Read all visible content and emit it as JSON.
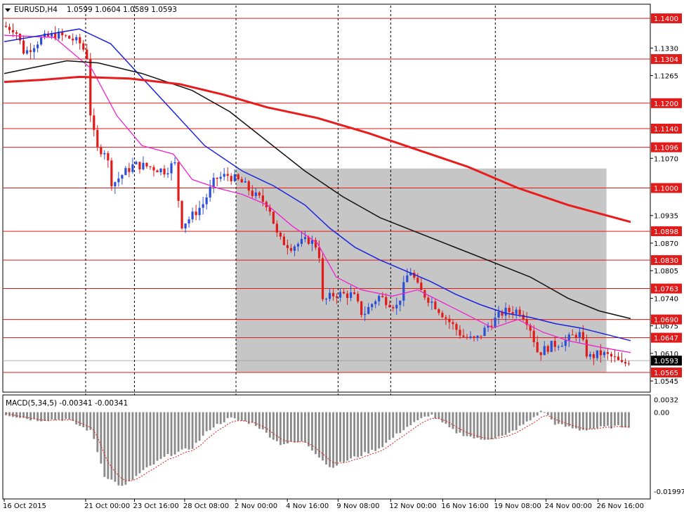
{
  "header": {
    "symbol_text": "EURUSD,H4",
    "ohlc_text": "1.0599 1.0604 1.0589 1.0593"
  },
  "macd": {
    "label": "MACD(5,34,5) -0.00341 -0.00341",
    "axis_ticks": [
      {
        "value": 0.0032,
        "label": "0.0032"
      },
      {
        "value": 0.0,
        "label": "0.00"
      },
      {
        "value": -0.01997,
        "label": "-0.01997"
      }
    ]
  },
  "colors": {
    "bull": "#2a4fd6",
    "bear": "#e11a1a",
    "level_line": "#e11a1a",
    "label_bg": "#e11a1a",
    "ma_fast": "#ee22cc",
    "ma_mid": "#1a25dd",
    "ma_slow": "#111111",
    "ma_long": "#e81c1c",
    "zone_fill": "#c6c6c6",
    "macd_hist": "#8a8a8a",
    "macd_signal": "#e11a1a"
  },
  "chart_data": {
    "type": "candlestick",
    "ylim": [
      1.0522,
      1.143
    ],
    "price_ticks": [
      "1.1330",
      "1.1265",
      "1.1070",
      "1.0935",
      "1.0870",
      "1.0805",
      "1.0740",
      "1.0675",
      "1.0610",
      "1.0545"
    ],
    "levels": [
      {
        "value": 1.14,
        "label": "1.1400"
      },
      {
        "value": 1.1304,
        "label": "1.1304"
      },
      {
        "value": 1.12,
        "label": "1.1200"
      },
      {
        "value": 1.114,
        "label": "1.1140"
      },
      {
        "value": 1.1096,
        "label": "1.1096"
      },
      {
        "value": 1.1,
        "label": "1.1000"
      },
      {
        "value": 1.0898,
        "label": "1.0898"
      },
      {
        "value": 1.083,
        "label": "1.0830"
      },
      {
        "value": 1.0763,
        "label": "1.0763"
      },
      {
        "value": 1.069,
        "label": "1.0690"
      },
      {
        "value": 1.0647,
        "label": "1.0647"
      },
      {
        "value": 1.0565,
        "label": "1.0565"
      }
    ],
    "current_price": {
      "value": 1.0593,
      "label": "1.0593"
    },
    "shaded_zone": {
      "from": "2 Nov 00:00",
      "to": "26 Nov 16:00",
      "price_low": 1.0566,
      "price_high": 1.1046
    },
    "time_labels": [
      "16 Oct 2015",
      "21 Oct 00:00",
      "23 Oct 16:00",
      "28 Oct 08:00",
      "2 Nov 00:00",
      "4 Nov 16:00",
      "9 Nov 08:00",
      "12 Nov 00:00",
      "16 Nov 16:00",
      "19 Nov 08:00",
      "24 Nov 00:00",
      "26 Nov 16:00"
    ],
    "day_separators": [
      "21 Oct 00:00",
      "23 Oct 16:00",
      "2 Nov 00:00",
      "9 Nov 08:00",
      "12 Nov 00:00",
      "19 Nov 08:00"
    ],
    "price_path": [
      {
        "t": 0,
        "p": 1.1382
      },
      {
        "t": 0.02,
        "p": 1.1375
      },
      {
        "t": 0.035,
        "p": 1.1318
      },
      {
        "t": 0.06,
        "p": 1.135
      },
      {
        "t": 0.085,
        "p": 1.1362
      },
      {
        "t": 0.11,
        "p": 1.1352
      },
      {
        "t": 0.125,
        "p": 1.134
      },
      {
        "t": 0.135,
        "p": 1.131
      },
      {
        "t": 0.14,
        "p": 1.118
      },
      {
        "t": 0.15,
        "p": 1.1092
      },
      {
        "t": 0.165,
        "p": 1.1088
      },
      {
        "t": 0.175,
        "p": 1.1008
      },
      {
        "t": 0.19,
        "p": 1.103
      },
      {
        "t": 0.21,
        "p": 1.1055
      },
      {
        "t": 0.235,
        "p": 1.105
      },
      {
        "t": 0.26,
        "p": 1.104
      },
      {
        "t": 0.275,
        "p": 1.106
      },
      {
        "t": 0.285,
        "p": 1.0912
      },
      {
        "t": 0.3,
        "p": 1.093
      },
      {
        "t": 0.32,
        "p": 1.0962
      },
      {
        "t": 0.34,
        "p": 1.1022
      },
      {
        "t": 0.36,
        "p": 1.103
      },
      {
        "t": 0.385,
        "p": 1.101
      },
      {
        "t": 0.4,
        "p": 1.0985
      },
      {
        "t": 0.425,
        "p": 1.096
      },
      {
        "t": 0.44,
        "p": 1.088
      },
      {
        "t": 0.46,
        "p": 1.0862
      },
      {
        "t": 0.49,
        "p": 1.0878
      },
      {
        "t": 0.505,
        "p": 1.0858
      },
      {
        "t": 0.51,
        "p": 1.073
      },
      {
        "t": 0.53,
        "p": 1.075
      },
      {
        "t": 0.56,
        "p": 1.0748
      },
      {
        "t": 0.575,
        "p": 1.07
      },
      {
        "t": 0.6,
        "p": 1.0745
      },
      {
        "t": 0.63,
        "p": 1.072
      },
      {
        "t": 0.65,
        "p": 1.081
      },
      {
        "t": 0.665,
        "p": 1.076
      },
      {
        "t": 0.69,
        "p": 1.0725
      },
      {
        "t": 0.71,
        "p": 1.069
      },
      {
        "t": 0.735,
        "p": 1.065
      },
      {
        "t": 0.755,
        "p": 1.064
      },
      {
        "t": 0.775,
        "p": 1.0675
      },
      {
        "t": 0.8,
        "p": 1.0708
      },
      {
        "t": 0.825,
        "p": 1.0712
      },
      {
        "t": 0.84,
        "p": 1.0682
      },
      {
        "t": 0.855,
        "p": 1.061
      },
      {
        "t": 0.875,
        "p": 1.0628
      },
      {
        "t": 0.9,
        "p": 1.064
      },
      {
        "t": 0.92,
        "p": 1.066
      },
      {
        "t": 0.935,
        "p": 1.06
      },
      {
        "t": 0.955,
        "p": 1.061
      },
      {
        "t": 0.975,
        "p": 1.06
      },
      {
        "t": 0.99,
        "p": 1.0582
      },
      {
        "t": 1,
        "p": 1.0593
      }
    ],
    "series": [
      {
        "key": "ma_fast",
        "points": [
          [
            0,
            1.136
          ],
          [
            0.08,
            1.1355
          ],
          [
            0.14,
            1.128
          ],
          [
            0.18,
            1.117
          ],
          [
            0.22,
            1.11
          ],
          [
            0.27,
            1.108
          ],
          [
            0.3,
            1.102
          ],
          [
            0.34,
            1.1
          ],
          [
            0.38,
            1.0985
          ],
          [
            0.42,
            1.096
          ],
          [
            0.46,
            1.091
          ],
          [
            0.5,
            1.087
          ],
          [
            0.53,
            1.079
          ],
          [
            0.57,
            1.076
          ],
          [
            0.62,
            1.0745
          ],
          [
            0.66,
            1.076
          ],
          [
            0.7,
            1.073
          ],
          [
            0.74,
            1.07
          ],
          [
            0.78,
            1.067
          ],
          [
            0.82,
            1.069
          ],
          [
            0.86,
            1.066
          ],
          [
            0.9,
            1.064
          ],
          [
            0.95,
            1.0625
          ],
          [
            1,
            1.0612
          ]
        ]
      },
      {
        "key": "ma_mid",
        "points": [
          [
            0,
            1.1345
          ],
          [
            0.06,
            1.136
          ],
          [
            0.12,
            1.1375
          ],
          [
            0.17,
            1.134
          ],
          [
            0.22,
            1.126
          ],
          [
            0.27,
            1.118
          ],
          [
            0.32,
            1.11
          ],
          [
            0.38,
            1.104
          ],
          [
            0.43,
            1.1005
          ],
          [
            0.48,
            1.096
          ],
          [
            0.52,
            1.0905
          ],
          [
            0.56,
            1.086
          ],
          [
            0.6,
            1.083
          ],
          [
            0.64,
            1.0805
          ],
          [
            0.68,
            1.078
          ],
          [
            0.72,
            1.075
          ],
          [
            0.76,
            1.0725
          ],
          [
            0.8,
            1.0705
          ],
          [
            0.84,
            1.0695
          ],
          [
            0.88,
            1.068
          ],
          [
            0.92,
            1.067
          ],
          [
            0.96,
            1.0655
          ],
          [
            1,
            1.064
          ]
        ]
      },
      {
        "key": "ma_slow",
        "points": [
          [
            0,
            1.127
          ],
          [
            0.05,
            1.1285
          ],
          [
            0.1,
            1.13
          ],
          [
            0.15,
            1.1295
          ],
          [
            0.22,
            1.127
          ],
          [
            0.3,
            1.123
          ],
          [
            0.36,
            1.118
          ],
          [
            0.42,
            1.111
          ],
          [
            0.48,
            1.104
          ],
          [
            0.54,
            1.098
          ],
          [
            0.6,
            1.093
          ],
          [
            0.66,
            1.0895
          ],
          [
            0.72,
            1.086
          ],
          [
            0.78,
            1.0825
          ],
          [
            0.84,
            1.079
          ],
          [
            0.9,
            1.074
          ],
          [
            0.95,
            1.071
          ],
          [
            1,
            1.0692
          ]
        ]
      },
      {
        "key": "ma_long",
        "points": [
          [
            0,
            1.125
          ],
          [
            0.06,
            1.1255
          ],
          [
            0.12,
            1.1262
          ],
          [
            0.2,
            1.1258
          ],
          [
            0.28,
            1.1245
          ],
          [
            0.35,
            1.122
          ],
          [
            0.42,
            1.119
          ],
          [
            0.5,
            1.1165
          ],
          [
            0.58,
            1.113
          ],
          [
            0.66,
            1.109
          ],
          [
            0.74,
            1.105
          ],
          [
            0.82,
            1.1
          ],
          [
            0.9,
            1.096
          ],
          [
            1,
            1.092
          ]
        ]
      }
    ],
    "macd_hist_path": [
      [
        0,
        -0.0005
      ],
      [
        0.05,
        -0.002
      ],
      [
        0.1,
        -0.0018
      ],
      [
        0.14,
        -0.005
      ],
      [
        0.16,
        -0.016
      ],
      [
        0.19,
        -0.019
      ],
      [
        0.22,
        -0.015
      ],
      [
        0.26,
        -0.011
      ],
      [
        0.3,
        -0.009
      ],
      [
        0.33,
        -0.004
      ],
      [
        0.36,
        -0.0015
      ],
      [
        0.4,
        -0.003
      ],
      [
        0.44,
        -0.008
      ],
      [
        0.48,
        -0.0075
      ],
      [
        0.52,
        -0.014
      ],
      [
        0.55,
        -0.012
      ],
      [
        0.6,
        -0.009
      ],
      [
        0.64,
        -0.004
      ],
      [
        0.68,
        -0.0005
      ],
      [
        0.72,
        -0.005
      ],
      [
        0.76,
        -0.007
      ],
      [
        0.8,
        -0.006
      ],
      [
        0.84,
        -0.002
      ],
      [
        0.86,
        0.0005
      ],
      [
        0.88,
        -0.003
      ],
      [
        0.92,
        -0.0045
      ],
      [
        0.96,
        -0.0038
      ],
      [
        1,
        -0.0035
      ]
    ],
    "macd_ylim": [
      -0.0212,
      0.004
    ]
  }
}
